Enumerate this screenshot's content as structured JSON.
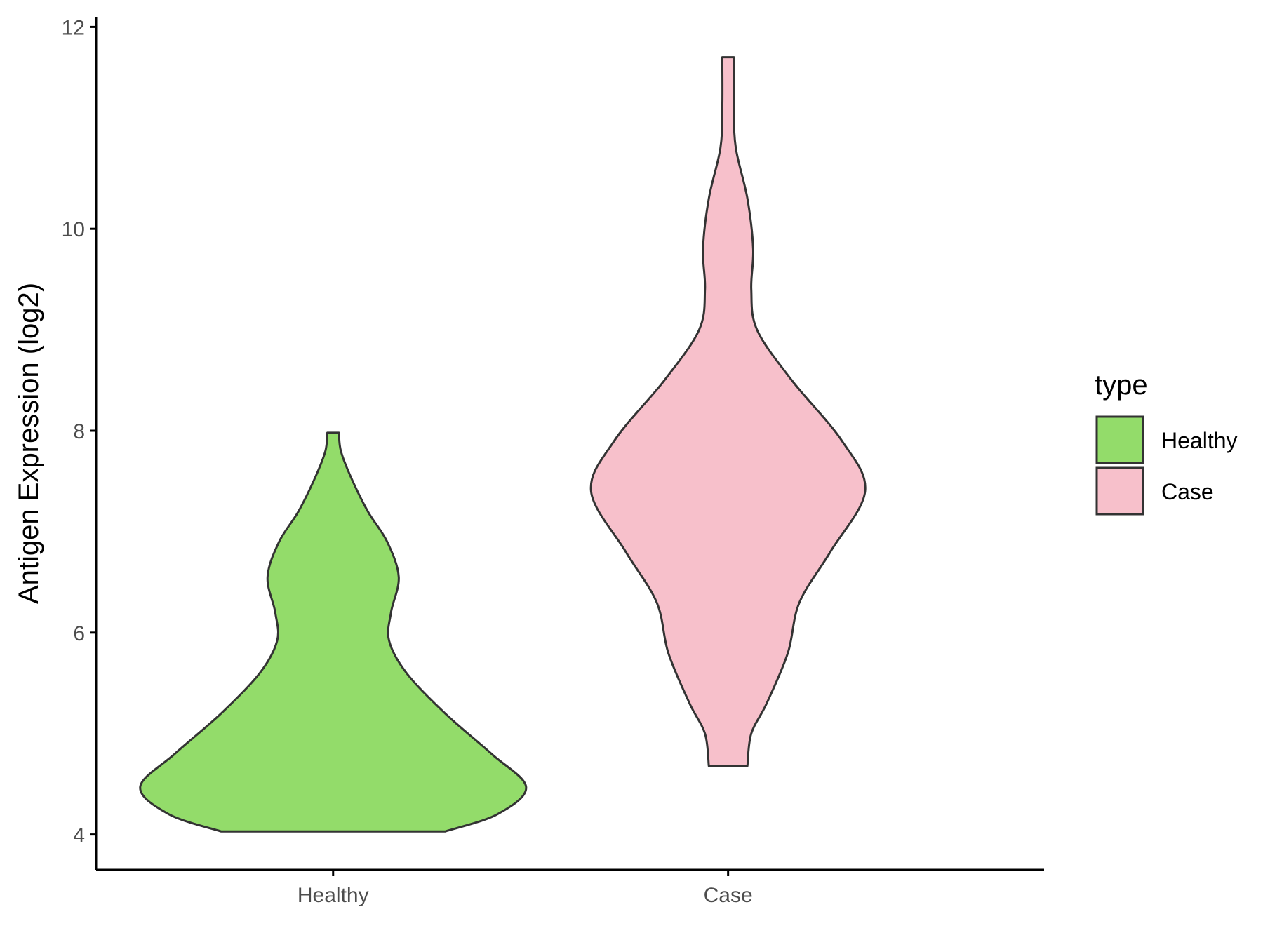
{
  "chart_data": {
    "type": "violin",
    "categories": [
      "Healthy",
      "Case"
    ],
    "ylabel": "Antigen Expression (log2)",
    "xlabel": "",
    "ylim": [
      3.65,
      12.1
    ],
    "yticks": [
      4,
      6,
      8,
      10,
      12
    ],
    "grid": false,
    "legend": {
      "title": "type",
      "position": "right",
      "entries": [
        {
          "label": "Healthy",
          "color": "#93DC6A"
        },
        {
          "label": "Case",
          "color": "#F7C0CB"
        }
      ]
    },
    "series": [
      {
        "name": "Healthy",
        "color": "#93DC6A",
        "min": 4.03,
        "max": 7.98,
        "density_profile": [
          {
            "y": 4.03,
            "w": 0.58
          },
          {
            "y": 4.2,
            "w": 0.85
          },
          {
            "y": 4.47,
            "w": 1.0
          },
          {
            "y": 4.8,
            "w": 0.82
          },
          {
            "y": 5.2,
            "w": 0.58
          },
          {
            "y": 5.6,
            "w": 0.38
          },
          {
            "y": 5.92,
            "w": 0.29
          },
          {
            "y": 6.2,
            "w": 0.3
          },
          {
            "y": 6.55,
            "w": 0.34
          },
          {
            "y": 6.9,
            "w": 0.28
          },
          {
            "y": 7.2,
            "w": 0.18
          },
          {
            "y": 7.55,
            "w": 0.09
          },
          {
            "y": 7.8,
            "w": 0.04
          },
          {
            "y": 7.98,
            "w": 0.03
          }
        ]
      },
      {
        "name": "Case",
        "color": "#F7C0CB",
        "min": 4.68,
        "max": 11.7,
        "density_profile": [
          {
            "y": 4.68,
            "w": 0.1
          },
          {
            "y": 5.0,
            "w": 0.12
          },
          {
            "y": 5.3,
            "w": 0.2
          },
          {
            "y": 5.8,
            "w": 0.31
          },
          {
            "y": 6.3,
            "w": 0.37
          },
          {
            "y": 6.8,
            "w": 0.53
          },
          {
            "y": 7.4,
            "w": 0.71
          },
          {
            "y": 7.9,
            "w": 0.59
          },
          {
            "y": 8.5,
            "w": 0.33
          },
          {
            "y": 9.0,
            "w": 0.15
          },
          {
            "y": 9.4,
            "w": 0.12
          },
          {
            "y": 9.8,
            "w": 0.13
          },
          {
            "y": 10.3,
            "w": 0.1
          },
          {
            "y": 10.8,
            "w": 0.04
          },
          {
            "y": 11.2,
            "w": 0.03
          },
          {
            "y": 11.7,
            "w": 0.03
          }
        ]
      }
    ]
  }
}
